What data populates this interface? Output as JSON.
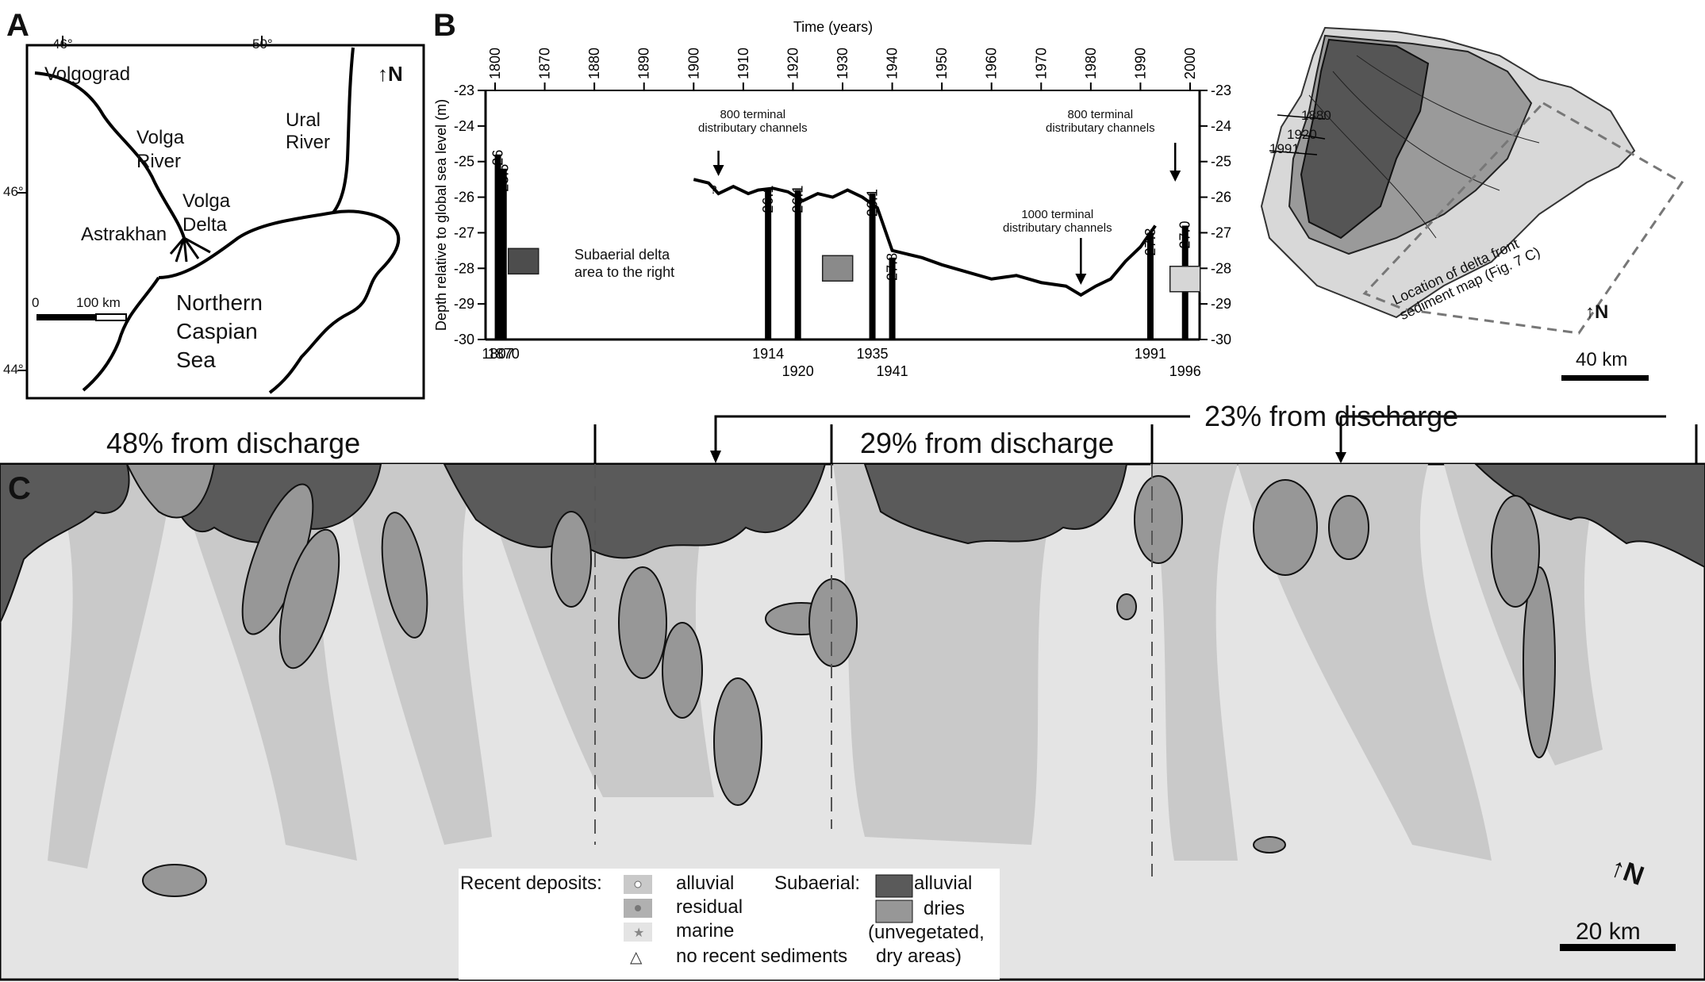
{
  "panel_a": {
    "letter": "A",
    "lon_labels": [
      "46°",
      "50°"
    ],
    "lat_labels": [
      "46°",
      "44°"
    ],
    "places": {
      "volgograd": "Volgograd",
      "volga_river_1": "Volga",
      "volga_river_2": "River",
      "ural_1": "Ural",
      "ural_2": "River",
      "astrakhan": "Astrakhan",
      "volga_delta_1": "Volga",
      "volga_delta_2": "Delta",
      "sea_1": "Northern",
      "sea_2": "Caspian",
      "sea_3": "Sea"
    },
    "scale": {
      "zero": "0",
      "label": "100 km"
    },
    "north": "N"
  },
  "panel_b": {
    "letter": "B",
    "title": "Time (years)",
    "ylabel": "Depth relative to global sea level (m)",
    "box_label_1": "Subaerial delta",
    "box_label_2": "area to the right",
    "annotations": {
      "a800_left_1": "800 terminal",
      "a800_left_2": "distributary channels",
      "a800_right_1": "800 terminal",
      "a800_right_2": "distributary channels",
      "a1000_1": "1000 terminal",
      "a1000_2": "distributary channels",
      "question": "?"
    }
  },
  "chart_data": {
    "type": "line",
    "xlabel": "Time (years)",
    "ylabel": "Depth relative to global sea level (m)",
    "xlim": [
      1800,
      2000
    ],
    "ylim": [
      -30,
      -23
    ],
    "x_ticks": [
      "1800",
      "1870",
      "1880",
      "1890",
      "1900",
      "1910",
      "1920",
      "1930",
      "1940",
      "1950",
      "1960",
      "1970",
      "1980",
      "1990",
      "2000"
    ],
    "y_ticks": [
      "-23",
      "-24",
      "-25",
      "-26",
      "-27",
      "-28",
      "-29",
      "-30"
    ],
    "y_ticks_right": [
      "-23",
      "-24",
      "-25",
      "-26",
      "-27",
      "-28",
      "-29",
      "-30"
    ],
    "series": [
      {
        "x": [
          1900,
          1903,
          1905,
          1908,
          1911,
          1913,
          1916,
          1919,
          1922,
          1925,
          1928,
          1931,
          1934,
          1937,
          1940,
          1943,
          1946,
          1950,
          1955,
          1960,
          1965,
          1970,
          1975,
          1978,
          1981,
          1984,
          1987,
          1990,
          1993
        ],
        "y": [
          -25.5,
          -25.6,
          -25.9,
          -25.7,
          -25.9,
          -25.8,
          -25.75,
          -25.85,
          -26.1,
          -25.9,
          -26.0,
          -25.8,
          -26.0,
          -26.3,
          -27.5,
          -27.6,
          -27.7,
          -27.9,
          -28.1,
          -28.3,
          -28.2,
          -28.4,
          -28.5,
          -28.75,
          -28.5,
          -28.3,
          -27.8,
          -27.4,
          -26.8
        ]
      }
    ],
    "bars": [
      {
        "year_label": "1807",
        "value_label": "~ -26",
        "x_year": 1804,
        "top": -24.8
      },
      {
        "year_label": "1870",
        "value_label": "-25.5",
        "x_year": 1812,
        "top": -25.2
      },
      {
        "year_label": "1914",
        "value_label": "-26.1",
        "x_year": 1915,
        "top": -25.8
      },
      {
        "year_label": "1920",
        "value_label": "-26.1",
        "x_year": 1921,
        "top": -25.8
      },
      {
        "year_label": "1935",
        "value_label": "-26.1",
        "x_year": 1936,
        "top": -25.9
      },
      {
        "year_label": "1941",
        "value_label": "-27.8",
        "x_year": 1940,
        "top": -27.7
      },
      {
        "year_label": "1991",
        "value_label": "-27.3",
        "x_year": 1992,
        "top": -27.0
      },
      {
        "year_label": "1996",
        "value_label": "-27.0",
        "x_year": 1999,
        "top": -26.8
      }
    ],
    "boxes": [
      {
        "x_year": 1812,
        "y": -27.8,
        "shade": "#4d4d4d"
      },
      {
        "x_year": 1925,
        "y": -28.0,
        "shade": "#8a8a8a"
      },
      {
        "x_year": 1995,
        "y": -28.3,
        "shade": "#d6d6d6"
      }
    ]
  },
  "panel_b_map": {
    "labels": {
      "y1880": "1880",
      "y1920": "1920",
      "y1991": "1991"
    },
    "location_1": "Location of delta front",
    "location_2": "sediment map (Fig. 7 C)",
    "scale": "40 km",
    "north": "N"
  },
  "discharge": {
    "left": "48% from discharge",
    "mid": "29% from discharge",
    "right": "23% from discharge"
  },
  "panel_c": {
    "letter": "C",
    "scale": "20 km",
    "north": "N"
  },
  "legend": {
    "recent_title": "Recent deposits:",
    "alluvial": "alluvial",
    "residual": "residual",
    "marine": "marine",
    "no_recent": "no recent sediments",
    "subaerial_title": "Subaerial:",
    "sub_alluvial": "alluvial",
    "dries": "dries",
    "dries_note_1": "(unvegetated,",
    "dries_note_2": "dry areas)"
  },
  "colors": {
    "marine_bg": "#e4e4e4",
    "recent_alluvial": "#c9c9c9",
    "residual": "#b0b0b0",
    "subaerial_alluvial": "#5a5a5a",
    "dries": "#979797",
    "dot": "#777777"
  }
}
